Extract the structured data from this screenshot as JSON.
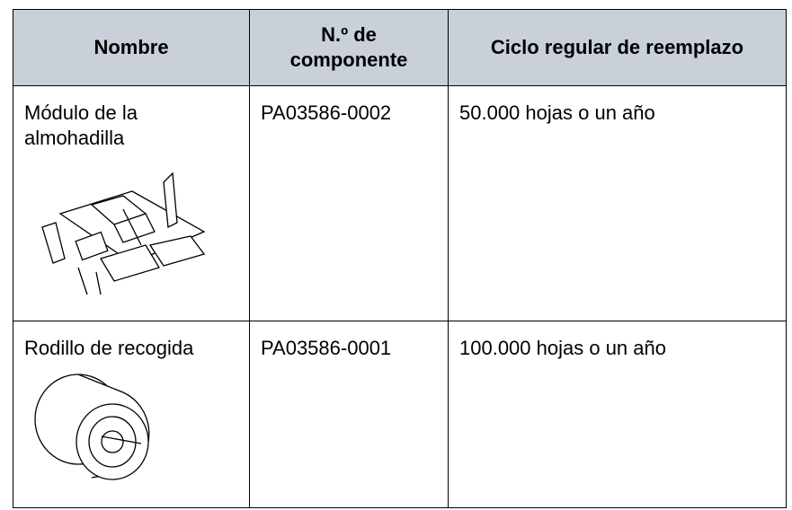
{
  "table": {
    "header": [
      "Nombre",
      "N.º de componente",
      "Ciclo regular de reemplazo"
    ],
    "rows": [
      [
        "Módulo de la almohadilla",
        "PA03586-0002",
        "50.000 hojas o un año"
      ],
      [
        "Rodillo de recogida",
        "PA03586-0001",
        "100.000 hojas o un año"
      ]
    ]
  }
}
